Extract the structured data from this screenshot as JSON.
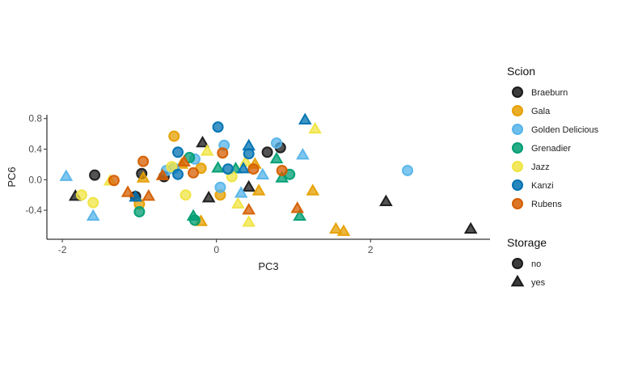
{
  "chart_data": {
    "type": "scatter",
    "xlabel": "PC3",
    "ylabel": "PC6",
    "xlim": [
      -2.2,
      3.55
    ],
    "ylim": [
      -0.78,
      0.85
    ],
    "x_ticks": [
      "-2",
      "0",
      "2"
    ],
    "x_tick_values": [
      -2,
      0,
      2
    ],
    "y_ticks": [
      "0.8",
      "0.4",
      "0.0",
      "-0.4"
    ],
    "y_tick_values": [
      0.8,
      0.4,
      0.0,
      -0.4
    ],
    "grid": false,
    "legend_placement": "right",
    "color_legend": {
      "title": "Scion",
      "entries": [
        {
          "label": "Braeburn",
          "color": "#1a1a1a"
        },
        {
          "label": "Gala",
          "color": "#E69F00"
        },
        {
          "label": "Golden Delicious",
          "color": "#56B4E9"
        },
        {
          "label": "Grenadier",
          "color": "#009E73"
        },
        {
          "label": "Jazz",
          "color": "#F0E442"
        },
        {
          "label": "Kanzi",
          "color": "#0072B2"
        },
        {
          "label": "Rubens",
          "color": "#D55E00"
        }
      ]
    },
    "shape_legend": {
      "title": "Storage",
      "entries": [
        {
          "label": "no",
          "shape": "circle"
        },
        {
          "label": "yes",
          "shape": "triangle"
        }
      ]
    },
    "series": [
      {
        "scion": "Braeburn",
        "points": [
          {
            "x": -1.58,
            "y": 0.06,
            "s": "no"
          },
          {
            "x": -1.05,
            "y": -0.22,
            "s": "no"
          },
          {
            "x": -0.97,
            "y": 0.08,
            "s": "no"
          },
          {
            "x": -0.68,
            "y": 0.04,
            "s": "no"
          },
          {
            "x": 0.66,
            "y": 0.36,
            "s": "no"
          },
          {
            "x": 0.83,
            "y": 0.42,
            "s": "no"
          },
          {
            "x": -1.83,
            "y": -0.22,
            "s": "yes"
          },
          {
            "x": -0.18,
            "y": 0.48,
            "s": "yes"
          },
          {
            "x": -0.1,
            "y": -0.24,
            "s": "yes"
          },
          {
            "x": 0.42,
            "y": -0.1,
            "s": "yes"
          },
          {
            "x": 2.2,
            "y": -0.29,
            "s": "yes"
          },
          {
            "x": 3.3,
            "y": -0.65,
            "s": "yes"
          }
        ]
      },
      {
        "scion": "Gala",
        "points": [
          {
            "x": -0.55,
            "y": 0.57,
            "s": "no"
          },
          {
            "x": -0.2,
            "y": 0.15,
            "s": "no"
          },
          {
            "x": 0.05,
            "y": -0.2,
            "s": "no"
          },
          {
            "x": -1.0,
            "y": -0.32,
            "s": "no"
          },
          {
            "x": -0.95,
            "y": 0.02,
            "s": "yes"
          },
          {
            "x": -0.2,
            "y": -0.55,
            "s": "yes"
          },
          {
            "x": 0.5,
            "y": 0.2,
            "s": "yes"
          },
          {
            "x": 0.55,
            "y": -0.15,
            "s": "yes"
          },
          {
            "x": 1.25,
            "y": -0.15,
            "s": "yes"
          },
          {
            "x": 1.55,
            "y": -0.65,
            "s": "yes"
          },
          {
            "x": 1.65,
            "y": -0.68,
            "s": "yes"
          },
          {
            "x": -0.45,
            "y": 0.2,
            "s": "yes"
          }
        ]
      },
      {
        "scion": "Golden Delicious",
        "points": [
          {
            "x": -0.28,
            "y": 0.27,
            "s": "no"
          },
          {
            "x": -0.55,
            "y": 0.15,
            "s": "no"
          },
          {
            "x": -0.65,
            "y": 0.12,
            "s": "no"
          },
          {
            "x": 0.05,
            "y": -0.1,
            "s": "no"
          },
          {
            "x": 0.1,
            "y": 0.45,
            "s": "no"
          },
          {
            "x": 0.78,
            "y": 0.48,
            "s": "no"
          },
          {
            "x": 2.48,
            "y": 0.12,
            "s": "no"
          },
          {
            "x": -1.95,
            "y": 0.04,
            "s": "yes"
          },
          {
            "x": -1.6,
            "y": -0.48,
            "s": "yes"
          },
          {
            "x": 0.32,
            "y": -0.18,
            "s": "yes"
          },
          {
            "x": 0.6,
            "y": 0.06,
            "s": "yes"
          },
          {
            "x": 1.12,
            "y": 0.32,
            "s": "yes"
          }
        ]
      },
      {
        "scion": "Grenadier",
        "points": [
          {
            "x": -0.35,
            "y": 0.29,
            "s": "no"
          },
          {
            "x": -0.28,
            "y": -0.53,
            "s": "no"
          },
          {
            "x": -1.0,
            "y": -0.42,
            "s": "no"
          },
          {
            "x": 0.95,
            "y": 0.07,
            "s": "no"
          },
          {
            "x": 0.02,
            "y": 0.15,
            "s": "yes"
          },
          {
            "x": -0.3,
            "y": -0.48,
            "s": "yes"
          },
          {
            "x": 0.25,
            "y": 0.14,
            "s": "yes"
          },
          {
            "x": 0.78,
            "y": 0.27,
            "s": "yes"
          },
          {
            "x": 0.85,
            "y": 0.02,
            "s": "yes"
          },
          {
            "x": 1.08,
            "y": -0.48,
            "s": "yes"
          }
        ]
      },
      {
        "scion": "Jazz",
        "points": [
          {
            "x": -1.75,
            "y": -0.2,
            "s": "no"
          },
          {
            "x": -1.6,
            "y": -0.3,
            "s": "no"
          },
          {
            "x": -0.58,
            "y": 0.17,
            "s": "no"
          },
          {
            "x": -0.4,
            "y": -0.2,
            "s": "no"
          },
          {
            "x": 0.2,
            "y": 0.04,
            "s": "no"
          },
          {
            "x": -1.38,
            "y": -0.02,
            "s": "yes"
          },
          {
            "x": -0.12,
            "y": 0.37,
            "s": "yes"
          },
          {
            "x": 0.38,
            "y": 0.23,
            "s": "yes"
          },
          {
            "x": 0.42,
            "y": -0.56,
            "s": "yes"
          },
          {
            "x": 0.28,
            "y": -0.32,
            "s": "yes"
          },
          {
            "x": 1.28,
            "y": 0.66,
            "s": "yes"
          }
        ]
      },
      {
        "scion": "Kanzi",
        "points": [
          {
            "x": -0.5,
            "y": 0.36,
            "s": "no"
          },
          {
            "x": 0.02,
            "y": 0.69,
            "s": "no"
          },
          {
            "x": -0.5,
            "y": 0.07,
            "s": "no"
          },
          {
            "x": 0.15,
            "y": 0.14,
            "s": "no"
          },
          {
            "x": 0.42,
            "y": 0.34,
            "s": "no"
          },
          {
            "x": 1.15,
            "y": 0.78,
            "s": "yes"
          },
          {
            "x": 0.42,
            "y": 0.44,
            "s": "yes"
          },
          {
            "x": 0.35,
            "y": 0.14,
            "s": "yes"
          },
          {
            "x": -1.05,
            "y": -0.23,
            "s": "yes"
          }
        ]
      },
      {
        "scion": "Rubens",
        "points": [
          {
            "x": -1.33,
            "y": -0.01,
            "s": "no"
          },
          {
            "x": -0.95,
            "y": 0.24,
            "s": "no"
          },
          {
            "x": -0.3,
            "y": 0.09,
            "s": "no"
          },
          {
            "x": 0.08,
            "y": 0.35,
            "s": "no"
          },
          {
            "x": 0.48,
            "y": 0.14,
            "s": "no"
          },
          {
            "x": 0.85,
            "y": 0.12,
            "s": "no"
          },
          {
            "x": -1.15,
            "y": -0.17,
            "s": "yes"
          },
          {
            "x": -0.88,
            "y": -0.22,
            "s": "yes"
          },
          {
            "x": -0.7,
            "y": 0.05,
            "s": "yes"
          },
          {
            "x": -0.42,
            "y": 0.23,
            "s": "yes"
          },
          {
            "x": 0.42,
            "y": -0.4,
            "s": "yes"
          },
          {
            "x": 1.05,
            "y": -0.38,
            "s": "yes"
          }
        ]
      }
    ]
  }
}
